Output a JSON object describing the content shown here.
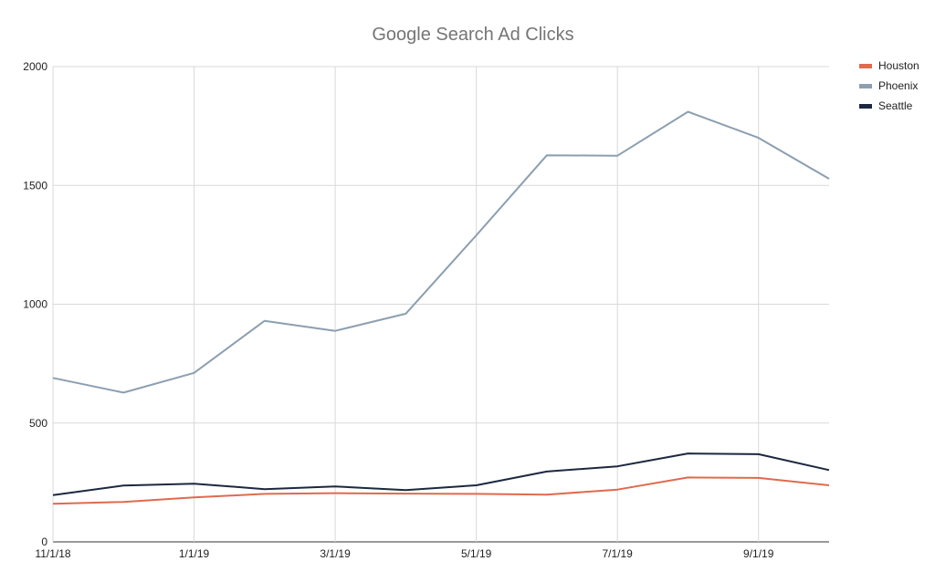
{
  "chart_data": {
    "type": "line",
    "title": "Google Search Ad Clicks",
    "xlabel": "",
    "ylabel": "",
    "x": [
      "11/1/18",
      "12/1/18",
      "1/1/19",
      "2/1/19",
      "3/1/19",
      "4/1/19",
      "5/1/19",
      "6/1/19",
      "7/1/19",
      "8/1/19",
      "9/1/19",
      "10/1/19"
    ],
    "x_tick_labels": [
      "11/1/18",
      "1/1/19",
      "3/1/19",
      "5/1/19",
      "7/1/19",
      "9/1/19"
    ],
    "ylim": [
      0,
      2000
    ],
    "y_ticks": [
      "0",
      "500",
      "1000",
      "1500",
      "2000"
    ],
    "grid": true,
    "legend_position": "top-right",
    "series": [
      {
        "name": "Houston",
        "color": "#e06a4e",
        "values": [
          160,
          168,
          187,
          202,
          205,
          203,
          202,
          199,
          220,
          271,
          269,
          238
        ]
      },
      {
        "name": "Phoenix",
        "color": "#8c9fb0",
        "values": [
          690,
          628,
          711,
          930,
          888,
          960,
          1290,
          1627,
          1625,
          1810,
          1700,
          1528
        ]
      },
      {
        "name": "Seattle",
        "color": "#1c2840",
        "values": [
          197,
          237,
          245,
          222,
          233,
          218,
          238,
          296,
          318,
          372,
          369,
          302
        ]
      }
    ]
  }
}
